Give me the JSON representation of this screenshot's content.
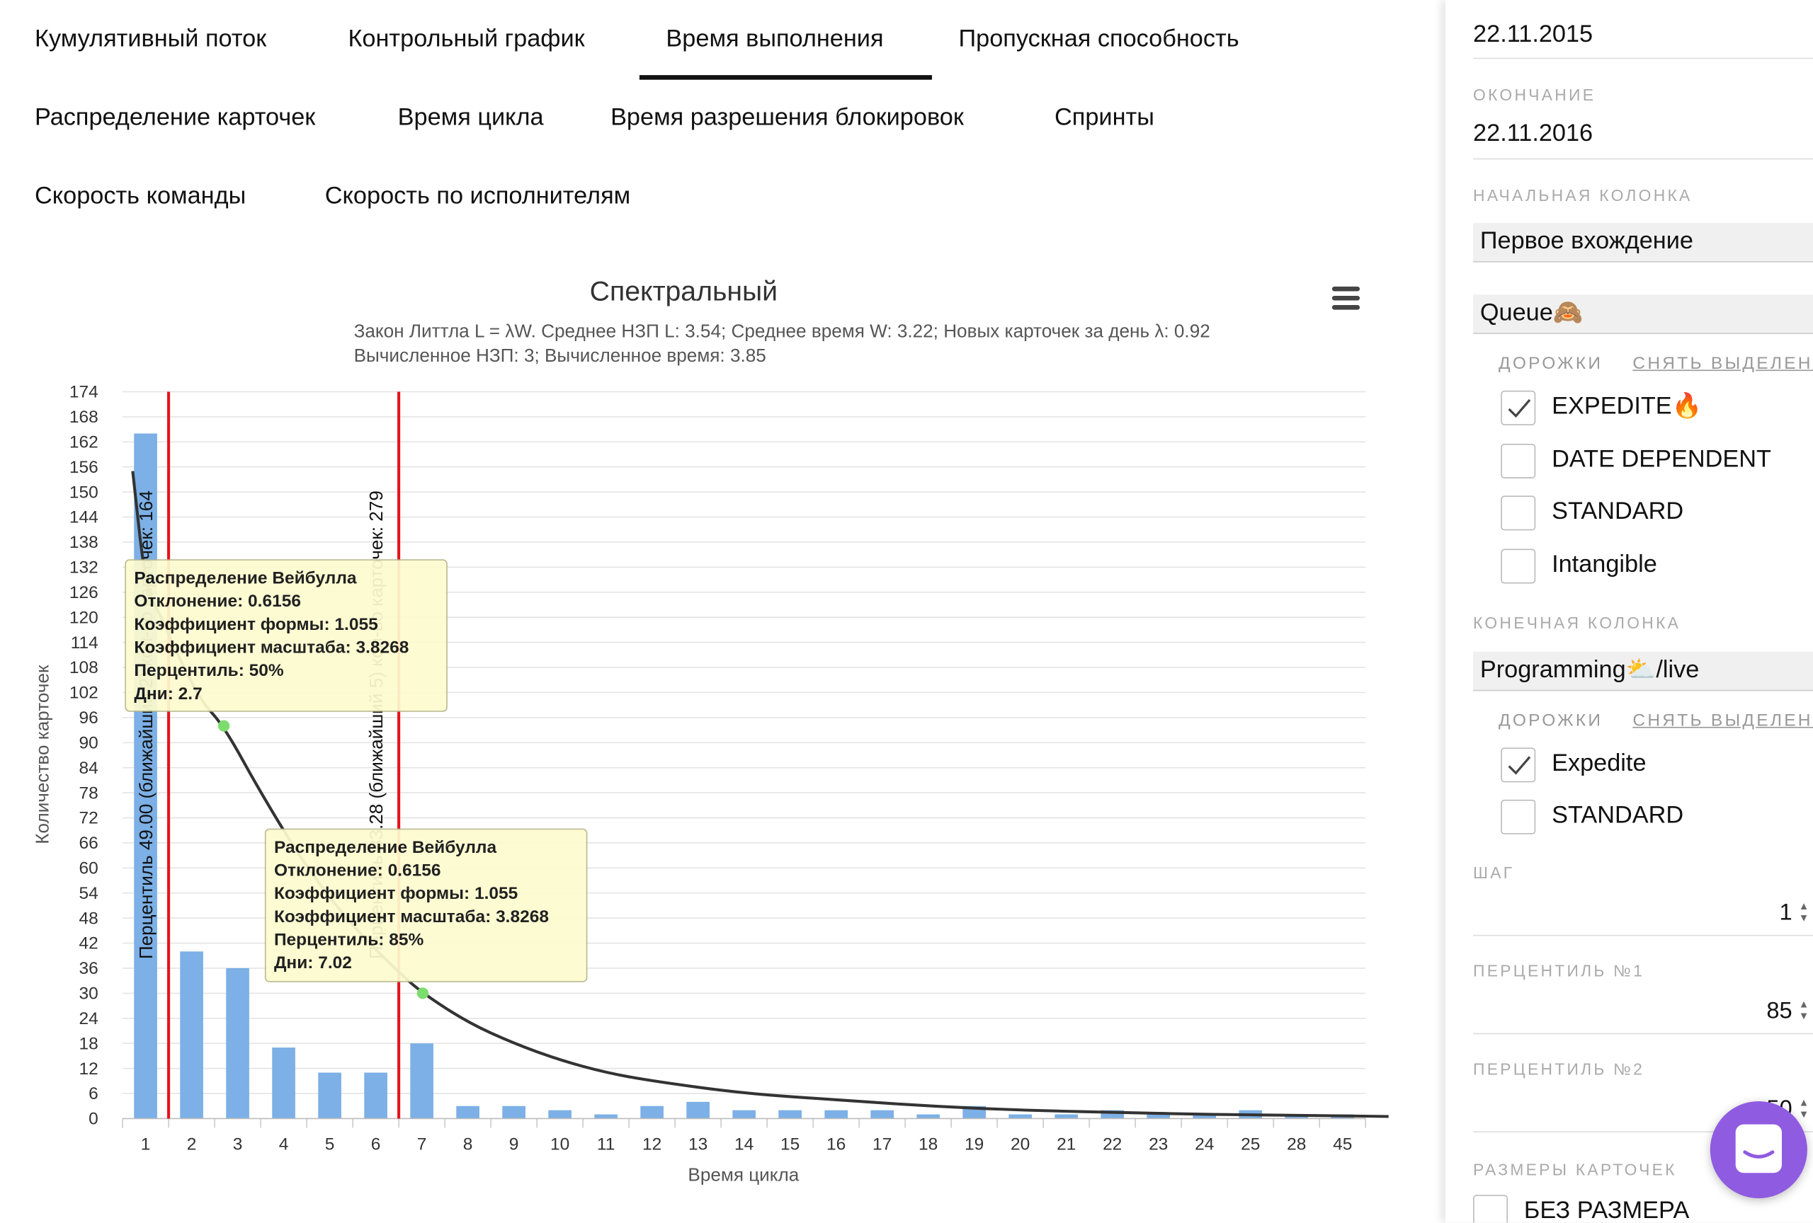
{
  "tabs": [
    {
      "label": "Кумулятивный поток",
      "active": false
    },
    {
      "label": "Контрольный график",
      "active": false
    },
    {
      "label": "Время выполнения",
      "active": true
    },
    {
      "label": "Пропускная способность",
      "active": false
    },
    {
      "label": "Распределение карточек",
      "active": false
    },
    {
      "label": "Время цикла",
      "active": false
    },
    {
      "label": "Время разрешения блокировок",
      "active": false
    },
    {
      "label": "Спринты",
      "active": false
    },
    {
      "label": "Скорость команды",
      "active": false
    },
    {
      "label": "Скорость по исполнителям",
      "active": false
    }
  ],
  "chart": {
    "title": "Спектральный",
    "subtitle_line1": "Закон Литтла L = λW. Среднее НЗП L: 3.54; Среднее время W: 3.22; Новых карточек за день λ: 0.92",
    "subtitle_line2": "Вычисленное НЗП: 3; Вычисленное время: 3.85",
    "menu_icon": "hamburger-menu-icon"
  },
  "chart_data": {
    "type": "bar",
    "title": "Спектральный",
    "xlabel": "Время цикла",
    "ylabel": "Количество карточек",
    "categories": [
      "1",
      "2",
      "3",
      "4",
      "5",
      "6",
      "7",
      "8",
      "9",
      "10",
      "11",
      "12",
      "13",
      "14",
      "15",
      "16",
      "17",
      "18",
      "19",
      "20",
      "21",
      "22",
      "23",
      "24",
      "25",
      "28",
      "45"
    ],
    "series": [
      {
        "values": [
          164,
          40,
          36,
          17,
          11,
          11,
          18,
          3,
          3,
          2,
          1,
          3,
          4,
          2,
          2,
          2,
          2,
          1,
          3,
          1,
          1,
          2,
          1,
          1,
          2,
          1,
          1
        ]
      }
    ],
    "yticks": [
      0,
      6,
      12,
      18,
      24,
      30,
      36,
      42,
      48,
      54,
      60,
      66,
      72,
      78,
      84,
      90,
      96,
      102,
      108,
      114,
      120,
      126,
      132,
      138,
      144,
      150,
      156,
      162,
      168,
      174
    ],
    "ylim": [
      0,
      174
    ],
    "grid": true,
    "bar_color": "#7cb0e6",
    "curve": {
      "x_days": [
        0.72,
        1,
        1.3,
        1.7,
        2.2,
        2.7,
        3.5,
        4.5,
        5.5,
        6.5,
        7.02,
        8,
        9,
        10,
        11,
        12,
        14,
        16,
        18,
        20,
        22,
        24,
        26,
        28
      ],
      "y": [
        155,
        127,
        121,
        111,
        100,
        94,
        78,
        60,
        46,
        35,
        30,
        23,
        18,
        14,
        11,
        9,
        6,
        4.5,
        3,
        2,
        1.5,
        1,
        0.8,
        0.5
      ]
    },
    "percentile_lines": [
      {
        "label": "Перцентиль 49.00 (ближайший 2) кол-во карточек: 164",
        "x_days": 1.5
      },
      {
        "label": "Перцентиль 83.28 (ближайший 5) кол-во карточек: 279",
        "x_days": 6.5
      }
    ],
    "markers": [
      {
        "x_days": 2.7,
        "y": 94
      },
      {
        "x_days": 7.02,
        "y": 30
      }
    ],
    "line_color": "#e3141b",
    "curve_color": "#333333",
    "marker_color": "#7ddc6e"
  },
  "tooltips": [
    {
      "lines": [
        "Распределение Вейбулла",
        "Отклонение: 0.6156",
        "Коэффициент формы: 1.055",
        "Коэффициент масштаба: 3.8268",
        "Перцентиль: 50%",
        "Дни: 2.7"
      ]
    },
    {
      "lines": [
        "Распределение Вейбулла",
        "Отклонение: 0.6156",
        "Коэффициент формы: 1.055",
        "Коэффициент масштаба: 3.8268",
        "Перцентиль: 85%",
        "Дни: 7.02"
      ]
    }
  ],
  "sidebar": {
    "start_date": "22.11.2015",
    "end_label": "ОКОНЧАНИЕ",
    "end_date": "22.11.2016",
    "start_column_label": "НАЧАЛЬНАЯ КОЛОНКА",
    "start_column_mode": "Первое вхождение",
    "start_column_value": "Queue🙈",
    "lanes_label": "ДОРОЖКИ",
    "deselect_label": "СНЯТЬ ВЫДЕЛЕНИ",
    "start_lanes": [
      {
        "label": "EXPEDITE🔥",
        "checked": true
      },
      {
        "label": "DATE DEPENDENT",
        "checked": false
      },
      {
        "label": "STANDARD",
        "checked": false
      },
      {
        "label": "Intangible",
        "checked": false
      }
    ],
    "end_column_label": "КОНЕЧНАЯ КОЛОНКА",
    "end_column_value": "Programming⛅/live",
    "end_lanes": [
      {
        "label": "Expedite",
        "checked": true
      },
      {
        "label": "STANDARD",
        "checked": false
      }
    ],
    "step_label": "ШАГ",
    "step_value": "1",
    "percentile1_label": "ПЕРЦЕНТИЛЬ №1",
    "percentile1_value": "85",
    "percentile2_label": "ПЕРЦЕНТИЛЬ №2",
    "percentile2_value": "50",
    "card_sizes_label": "РАЗМЕРЫ КАРТОЧЕК",
    "no_size_label": "БЕЗ РАЗМЕРА"
  }
}
